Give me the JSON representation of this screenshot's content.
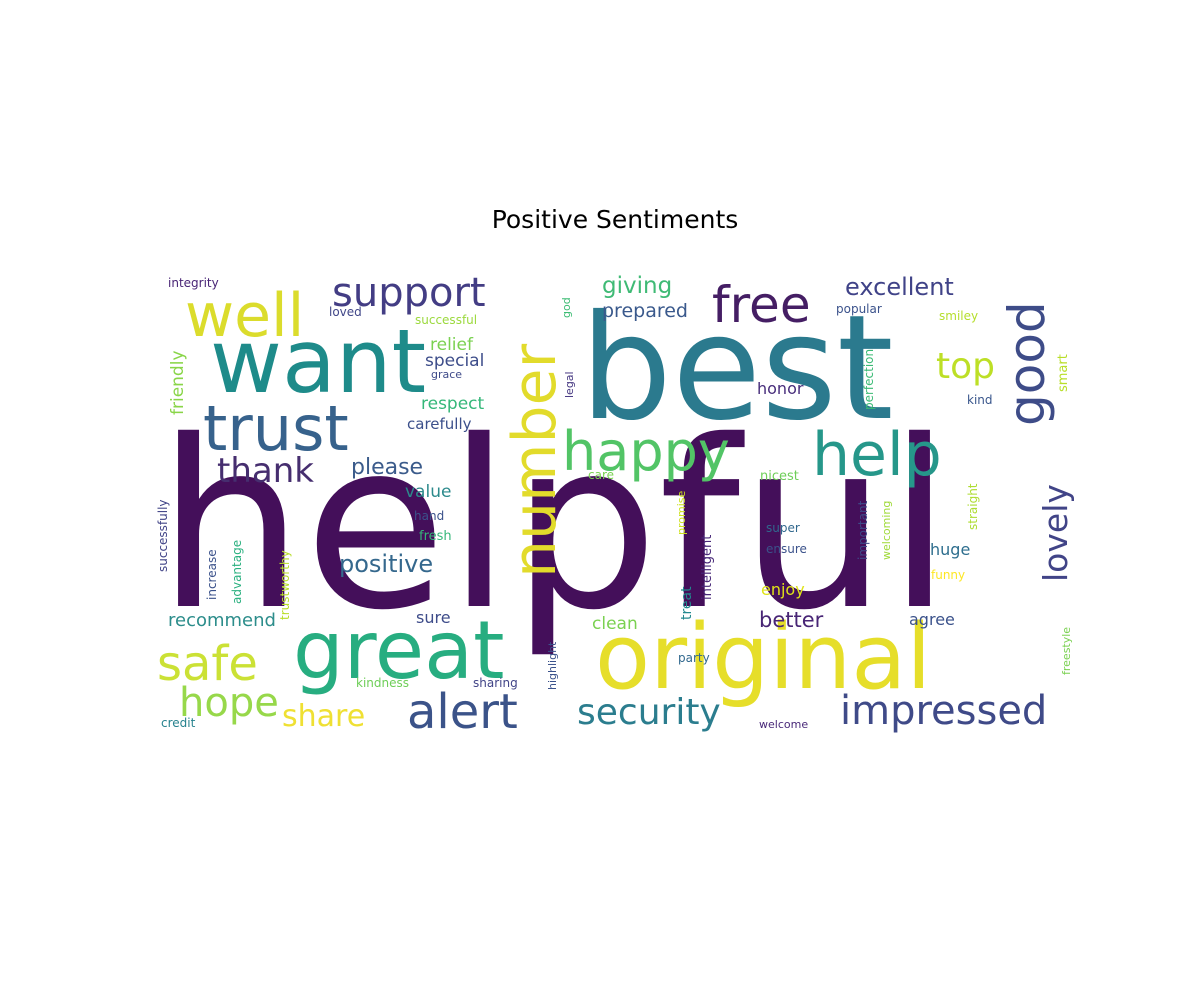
{
  "chart_data": {
    "type": "wordcloud",
    "title": "Positive Sentiments",
    "colormap": "viridis",
    "words": [
      {
        "text": "helpful",
        "color": "#440f5a"
      },
      {
        "text": "best",
        "color": "#2b7a8e"
      },
      {
        "text": "original",
        "color": "#e6de2a"
      },
      {
        "text": "want",
        "color": "#1e8b8a"
      },
      {
        "text": "great",
        "color": "#27ad80"
      },
      {
        "text": "number",
        "color": "#e2db2b"
      },
      {
        "text": "trust",
        "color": "#37628c"
      },
      {
        "text": "well",
        "color": "#dbdc2c"
      },
      {
        "text": "help",
        "color": "#26978a"
      },
      {
        "text": "happy",
        "color": "#52c466"
      },
      {
        "text": "free",
        "color": "#451e64"
      },
      {
        "text": "good",
        "color": "#3e4c88"
      },
      {
        "text": "alert",
        "color": "#3b5389"
      },
      {
        "text": "support",
        "color": "#433d84"
      },
      {
        "text": "safe",
        "color": "#cbe135"
      },
      {
        "text": "impressed",
        "color": "#3f4a88"
      },
      {
        "text": "security",
        "color": "#2b7d8e"
      },
      {
        "text": "hope",
        "color": "#97d84a"
      },
      {
        "text": "lovely",
        "color": "#414487"
      },
      {
        "text": "thank",
        "color": "#462e6f"
      },
      {
        "text": "top",
        "color": "#bddf26"
      },
      {
        "text": "share",
        "color": "#efe033"
      },
      {
        "text": "excellent",
        "color": "#404388"
      },
      {
        "text": "positive",
        "color": "#35688d"
      },
      {
        "text": "please",
        "color": "#3b5b8b"
      },
      {
        "text": "giving",
        "color": "#3fba75"
      },
      {
        "text": "better",
        "color": "#482575"
      },
      {
        "text": "prepared",
        "color": "#3a598c"
      },
      {
        "text": "recommend",
        "color": "#2c8d8b"
      },
      {
        "text": "respect",
        "color": "#35b779"
      },
      {
        "text": "relief",
        "color": "#7ad151"
      },
      {
        "text": "special",
        "color": "#3d4d8a"
      },
      {
        "text": "value",
        "color": "#2c8a8c"
      },
      {
        "text": "friendly",
        "color": "#89d548"
      },
      {
        "text": "honor",
        "color": "#472d7b"
      },
      {
        "text": "carefully",
        "color": "#3c508b"
      },
      {
        "text": "huge",
        "color": "#2e6e8e"
      },
      {
        "text": "clean",
        "color": "#7ad151"
      },
      {
        "text": "enjoy",
        "color": "#dfe318"
      },
      {
        "text": "agree",
        "color": "#3b528b"
      },
      {
        "text": "sure",
        "color": "#3e4c8a"
      },
      {
        "text": "smart",
        "color": "#b8de29"
      },
      {
        "text": "perfection",
        "color": "#3bbb75"
      },
      {
        "text": "smiley",
        "color": "#b5de2b"
      },
      {
        "text": "popular",
        "color": "#3b528b"
      },
      {
        "text": "successful",
        "color": "#9bd93c"
      },
      {
        "text": "loved",
        "color": "#404688"
      },
      {
        "text": "integrity",
        "color": "#482475"
      },
      {
        "text": "god",
        "color": "#3dbc74"
      },
      {
        "text": "grace",
        "color": "#3e4a89"
      },
      {
        "text": "legal",
        "color": "#453781"
      },
      {
        "text": "kind",
        "color": "#39568c"
      },
      {
        "text": "successfully",
        "color": "#414487"
      },
      {
        "text": "increase",
        "color": "#3b528b"
      },
      {
        "text": "advantage",
        "color": "#2ab07f"
      },
      {
        "text": "trustworthy",
        "color": "#b8de29"
      },
      {
        "text": "hand",
        "color": "#3b528b"
      },
      {
        "text": "fresh",
        "color": "#35b779"
      },
      {
        "text": "care",
        "color": "#7ad151"
      },
      {
        "text": "promise",
        "color": "#cde11d"
      },
      {
        "text": "treat",
        "color": "#23898e"
      },
      {
        "text": "intelligent",
        "color": "#482878"
      },
      {
        "text": "nicest",
        "color": "#6ece58"
      },
      {
        "text": "important",
        "color": "#3e4a89"
      },
      {
        "text": "welcoming",
        "color": "#a0da39"
      },
      {
        "text": "straight",
        "color": "#addc30"
      },
      {
        "text": "super",
        "color": "#31688e"
      },
      {
        "text": "ensure",
        "color": "#3b528b"
      },
      {
        "text": "funny",
        "color": "#fde725"
      },
      {
        "text": "freestyle",
        "color": "#7ad151"
      },
      {
        "text": "highlight",
        "color": "#3b528b"
      },
      {
        "text": "party",
        "color": "#31688e"
      },
      {
        "text": "kindness",
        "color": "#6ece58"
      },
      {
        "text": "sharing",
        "color": "#414487"
      },
      {
        "text": "credit",
        "color": "#26828e"
      },
      {
        "text": "welcome",
        "color": "#482878"
      }
    ]
  }
}
